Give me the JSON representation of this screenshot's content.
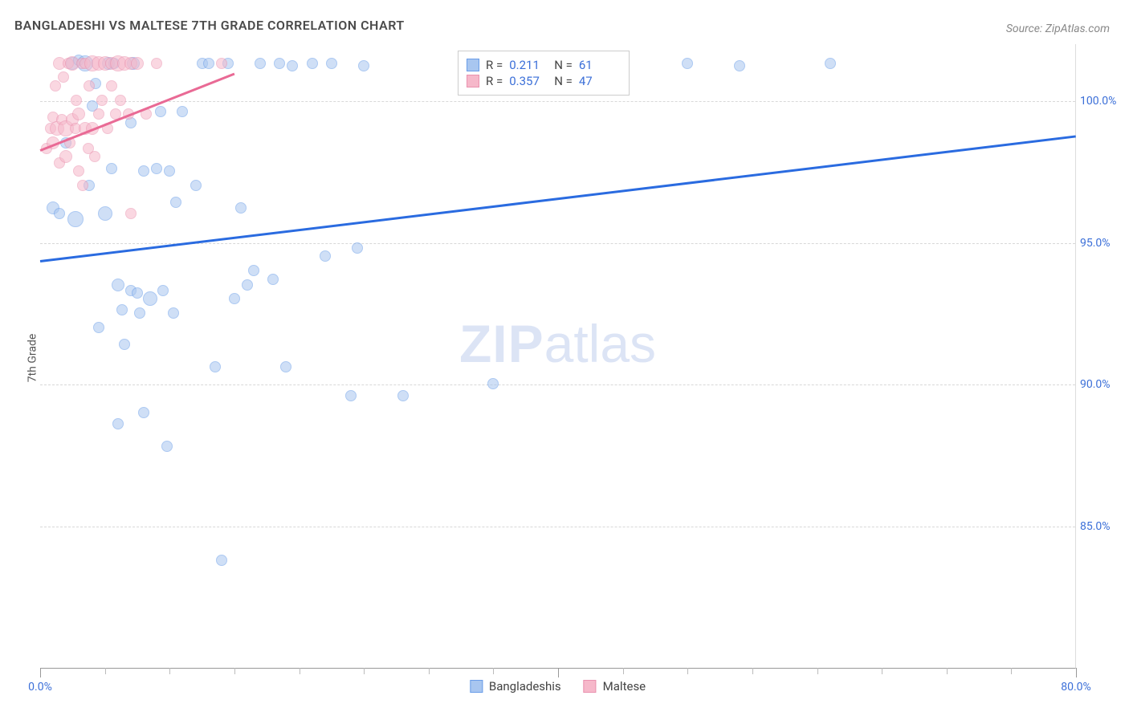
{
  "title": "BANGLADESHI VS MALTESE 7TH GRADE CORRELATION CHART",
  "source": "Source: ZipAtlas.com",
  "ylabel": "7th Grade",
  "watermark": {
    "bold": "ZIP",
    "rest": "atlas"
  },
  "chart": {
    "type": "scatter",
    "xlim": [
      0,
      80
    ],
    "ylim": [
      80,
      102
    ],
    "ytick_values": [
      85.0,
      90.0,
      95.0,
      100.0
    ],
    "ytick_labels": [
      "85.0%",
      "90.0%",
      "95.0%",
      "100.0%"
    ],
    "xtick_major": [
      0,
      40,
      80
    ],
    "xtick_minor": [
      5,
      10,
      15,
      20,
      25,
      30,
      35,
      45,
      50,
      55,
      60,
      65,
      70,
      75
    ],
    "xtick_labels": {
      "0": "0.0%",
      "80": "80.0%"
    },
    "grid_color": "#d8d8d8",
    "axis_label_color": "#3b6fd8",
    "background_color": "#ffffff",
    "marker_radius_min": 6,
    "marker_radius_max": 13,
    "series": [
      {
        "name": "Bangladeshis",
        "fill": "#a8c6f0",
        "fill_opacity": 0.55,
        "stroke": "#6a9de8",
        "trend_color": "#2a6be0",
        "trend": {
          "x1": 0,
          "y1": 94.4,
          "x2": 80,
          "y2": 98.8
        },
        "stats": {
          "R": "0.211",
          "N": "61"
        },
        "points": [
          [
            1,
            96.2,
            8
          ],
          [
            1.5,
            96.0,
            7
          ],
          [
            2,
            98.5,
            7
          ],
          [
            2.5,
            101.3,
            8
          ],
          [
            2.7,
            95.8,
            10
          ],
          [
            3,
            101.4,
            7
          ],
          [
            3.5,
            101.3,
            10
          ],
          [
            3.8,
            97.0,
            7
          ],
          [
            4,
            99.8,
            7
          ],
          [
            4.3,
            100.6,
            7
          ],
          [
            4.5,
            92.0,
            7
          ],
          [
            5,
            96.0,
            9
          ],
          [
            5.3,
            101.3,
            8
          ],
          [
            5.5,
            97.6,
            7
          ],
          [
            5.7,
            101.3,
            7
          ],
          [
            6,
            93.5,
            8
          ],
          [
            6,
            88.6,
            7
          ],
          [
            6.3,
            92.6,
            7
          ],
          [
            6.5,
            91.4,
            7
          ],
          [
            7,
            99.2,
            7
          ],
          [
            7,
            93.3,
            7
          ],
          [
            7.2,
            101.3,
            8
          ],
          [
            7.5,
            93.2,
            7
          ],
          [
            7.7,
            92.5,
            7
          ],
          [
            8,
            97.5,
            7
          ],
          [
            8,
            89.0,
            7
          ],
          [
            8.5,
            93.0,
            9
          ],
          [
            9,
            97.6,
            7
          ],
          [
            9.3,
            99.6,
            7
          ],
          [
            9.5,
            93.3,
            7
          ],
          [
            9.8,
            87.8,
            7
          ],
          [
            10,
            97.5,
            7
          ],
          [
            10.3,
            92.5,
            7
          ],
          [
            10.5,
            96.4,
            7
          ],
          [
            11,
            99.6,
            7
          ],
          [
            12,
            97.0,
            7
          ],
          [
            12.5,
            101.3,
            7
          ],
          [
            13,
            101.3,
            7
          ],
          [
            13.5,
            90.6,
            7
          ],
          [
            14,
            83.8,
            7
          ],
          [
            14.5,
            101.3,
            7
          ],
          [
            15,
            93.0,
            7
          ],
          [
            15.5,
            96.2,
            7
          ],
          [
            16,
            93.5,
            7
          ],
          [
            16.5,
            94.0,
            7
          ],
          [
            17,
            101.3,
            7
          ],
          [
            18,
            93.7,
            7
          ],
          [
            18.5,
            101.3,
            7
          ],
          [
            19,
            90.6,
            7
          ],
          [
            19.5,
            101.2,
            7
          ],
          [
            21,
            101.3,
            7
          ],
          [
            22,
            94.5,
            7
          ],
          [
            22.5,
            101.3,
            7
          ],
          [
            24,
            89.6,
            7
          ],
          [
            24.5,
            94.8,
            7
          ],
          [
            25,
            101.2,
            7
          ],
          [
            28,
            89.6,
            7
          ],
          [
            35,
            90.0,
            7
          ],
          [
            50,
            101.3,
            7
          ],
          [
            54,
            101.2,
            7
          ],
          [
            61,
            101.3,
            7
          ]
        ]
      },
      {
        "name": "Maltese",
        "fill": "#f6b8ca",
        "fill_opacity": 0.55,
        "stroke": "#ea92af",
        "trend_color": "#e96a95",
        "trend": {
          "x1": 0,
          "y1": 98.3,
          "x2": 15,
          "y2": 101.0
        },
        "stats": {
          "R": "0.357",
          "N": "47"
        },
        "points": [
          [
            0.5,
            98.3,
            7
          ],
          [
            0.8,
            99.0,
            7
          ],
          [
            1,
            98.5,
            8
          ],
          [
            1,
            99.4,
            7
          ],
          [
            1.2,
            100.5,
            7
          ],
          [
            1.3,
            99.0,
            9
          ],
          [
            1.5,
            97.8,
            7
          ],
          [
            1.5,
            101.3,
            8
          ],
          [
            1.7,
            99.3,
            7
          ],
          [
            1.8,
            100.8,
            7
          ],
          [
            2,
            98.0,
            8
          ],
          [
            2,
            99.0,
            10
          ],
          [
            2.2,
            101.3,
            7
          ],
          [
            2.3,
            98.5,
            7
          ],
          [
            2.5,
            99.3,
            8
          ],
          [
            2.5,
            101.3,
            9
          ],
          [
            2.7,
            99.0,
            7
          ],
          [
            2.8,
            100.0,
            7
          ],
          [
            3,
            97.5,
            7
          ],
          [
            3,
            99.5,
            8
          ],
          [
            3.2,
            101.3,
            7
          ],
          [
            3.3,
            97.0,
            7
          ],
          [
            3.5,
            99.0,
            8
          ],
          [
            3.5,
            101.3,
            7
          ],
          [
            3.7,
            98.3,
            7
          ],
          [
            3.8,
            100.5,
            7
          ],
          [
            4,
            99.0,
            8
          ],
          [
            4,
            101.3,
            10
          ],
          [
            4.2,
            98.0,
            7
          ],
          [
            4.5,
            99.5,
            7
          ],
          [
            4.5,
            101.3,
            9
          ],
          [
            4.8,
            100.0,
            7
          ],
          [
            5,
            101.3,
            9
          ],
          [
            5.2,
            99.0,
            7
          ],
          [
            5.5,
            100.5,
            7
          ],
          [
            5.5,
            101.3,
            8
          ],
          [
            5.8,
            99.5,
            7
          ],
          [
            6,
            101.3,
            10
          ],
          [
            6.2,
            100.0,
            7
          ],
          [
            6.5,
            101.3,
            9
          ],
          [
            6.8,
            99.5,
            7
          ],
          [
            7,
            101.3,
            8
          ],
          [
            7,
            96.0,
            7
          ],
          [
            7.5,
            101.3,
            8
          ],
          [
            8.2,
            99.5,
            7
          ],
          [
            9,
            101.3,
            7
          ],
          [
            14,
            101.3,
            7
          ]
        ]
      }
    ]
  },
  "stats_box": {
    "rows": [
      {
        "swatch_fill": "#a8c6f0",
        "swatch_stroke": "#6a9de8",
        "R_label": "R =",
        "R": "0.211",
        "N_label": "N =",
        "N": "61"
      },
      {
        "swatch_fill": "#f6b8ca",
        "swatch_stroke": "#ea92af",
        "R_label": "R =",
        "R": "0.357",
        "N_label": "N =",
        "N": "47"
      }
    ]
  },
  "legend": [
    {
      "swatch_fill": "#a8c6f0",
      "swatch_stroke": "#6a9de8",
      "label": "Bangladeshis"
    },
    {
      "swatch_fill": "#f6b8ca",
      "swatch_stroke": "#ea92af",
      "label": "Maltese"
    }
  ]
}
